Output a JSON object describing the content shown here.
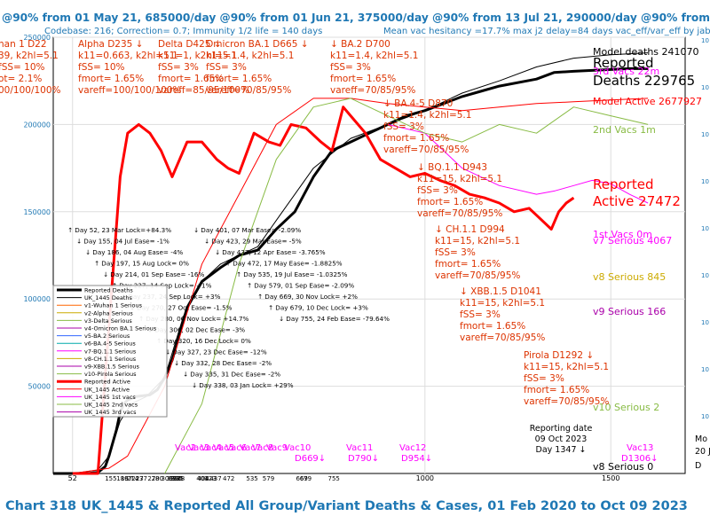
{
  "chart_data": {
    "type": "line",
    "title": "Chart 318 UK_1445 & Reported All Group/Variant Deaths & Cases, 01 Feb 2020 to Oct 09 2023",
    "header_line1": "@90% from 01 May 21, 685000/day @90% from 01 Jun 21, 375000/day @90% from 13 Jul 21, 290000/day @90% from 23 Aug 21, 150000/day @90% from",
    "header_line2": "Codebase: 216; Correction= 0.7; Immunity 1/2 life = 140 days",
    "header_line3": "Mean vac hesitancy =17.7% max j2 delay=84 days vac_eff/var_eff by jab",
    "xlabel": "",
    "ylabel": "",
    "xlim": [
      0,
      1700
    ],
    "ylim": [
      0,
      250000
    ],
    "x_ticks": [
      {
        "x": 52,
        "label": "52"
      },
      {
        "x": 1000,
        "label": "1000"
      },
      {
        "x": 1500,
        "label": "1500"
      }
    ],
    "y_ticks": [
      {
        "y": 50000,
        "label": "50000"
      },
      {
        "y": 100000,
        "label": "100000"
      },
      {
        "y": 150000,
        "label": "150000"
      },
      {
        "y": 200000,
        "label": "200000"
      },
      {
        "y": 250000,
        "label": "250000"
      }
    ],
    "x_day_labels": [
      "155",
      "186",
      "197",
      "214",
      "227",
      "237",
      "270",
      "280",
      "306",
      "320",
      "327",
      "332",
      "335",
      "338",
      "401",
      "404",
      "423",
      "437",
      "472",
      "535",
      "579",
      "669",
      "679",
      "755"
    ],
    "right_axis_labels": [
      "10",
      "10",
      "10",
      "10",
      "10",
      "10",
      "10",
      "10",
      "10"
    ],
    "series": [
      {
        "name": "Reported Deaths",
        "color": "#000000",
        "width": 3,
        "x": [
          0,
          52,
          100,
          120,
          140,
          150,
          170,
          180,
          190,
          200,
          210,
          220,
          240,
          260,
          280,
          300,
          320,
          340,
          360,
          400,
          450,
          500,
          550,
          600,
          650,
          700,
          750,
          800,
          850,
          900,
          950,
          1000,
          1050,
          1100,
          1150,
          1200,
          1300,
          1347,
          1400,
          1450,
          1500,
          1550,
          1600
        ],
        "values": [
          0,
          0,
          200,
          600,
          4000,
          10000,
          25000,
          35000,
          40000,
          42000,
          43000,
          44000,
          44500,
          45000,
          48000,
          55000,
          65000,
          80000,
          95000,
          110000,
          118000,
          125000,
          128000,
          140000,
          150000,
          170000,
          185000,
          190000,
          195000,
          200000,
          205000,
          208000,
          212000,
          216000,
          219000,
          222000,
          226000,
          229765,
          230500,
          231000,
          231500,
          232000,
          232000
        ]
      },
      {
        "name": "UK_1445 Deaths",
        "color": "#000000",
        "width": 1,
        "x": [
          0,
          52,
          120,
          150,
          180,
          210,
          250,
          300,
          350,
          400,
          450,
          500,
          550,
          600,
          700,
          800,
          900,
          1000,
          1100,
          1200,
          1300,
          1400,
          1500,
          1600
        ],
        "values": [
          0,
          0,
          2000,
          10000,
          30000,
          40000,
          44000,
          55000,
          90000,
          110000,
          120000,
          125000,
          130000,
          145000,
          175000,
          192000,
          200000,
          208000,
          218000,
          225000,
          233000,
          238000,
          240000,
          241070
        ]
      },
      {
        "name": "Reported Active",
        "color": "#ff0000",
        "width": 3,
        "x": [
          52,
          120,
          180,
          200,
          230,
          260,
          290,
          320,
          340,
          360,
          400,
          440,
          470,
          500,
          540,
          580,
          610,
          640,
          680,
          720,
          750,
          780,
          800,
          840,
          880,
          920,
          960,
          1000,
          1040,
          1080,
          1120,
          1160,
          1200,
          1240,
          1280,
          1300,
          1340,
          1360,
          1380,
          1400
        ],
        "values": [
          0,
          0,
          170000,
          195000,
          200000,
          195000,
          185000,
          170000,
          180000,
          190000,
          190000,
          180000,
          175000,
          172000,
          195000,
          190000,
          188000,
          200000,
          198000,
          190000,
          185000,
          210000,
          205000,
          195000,
          180000,
          175000,
          170000,
          172000,
          168000,
          165000,
          160000,
          158000,
          155000,
          150000,
          152000,
          148000,
          140000,
          150000,
          155000,
          158000
        ]
      },
      {
        "name": "UK_1445 Active",
        "color": "#ff0000",
        "width": 1,
        "x": [
          52,
          150,
          200,
          300,
          400,
          600,
          700,
          800,
          900,
          1000,
          1100,
          1200,
          1300,
          1400,
          1500,
          1600
        ],
        "values": [
          0,
          3000,
          10000,
          50000,
          120000,
          200000,
          215000,
          215000,
          212000,
          210000,
          208000,
          210000,
          212000,
          213000,
          214000,
          215000
        ]
      },
      {
        "name": "Model Active curve (pink)",
        "color": "#ff00ff",
        "width": 1,
        "x": [
          900,
          1000,
          1100,
          1200,
          1300,
          1350,
          1400,
          1450,
          1500,
          1550,
          1600
        ],
        "values": [
          200000,
          195000,
          175000,
          165000,
          160000,
          162000,
          165000,
          168000,
          166000,
          160000,
          155000
        ]
      },
      {
        "name": "2nd Vacs",
        "color": "#88bb44",
        "width": 1,
        "x": [
          300,
          400,
          500,
          600,
          700,
          800,
          900,
          1000,
          1100,
          1200,
          1300,
          1400,
          1500,
          1600
        ],
        "values": [
          0,
          40000,
          120000,
          180000,
          210000,
          215000,
          205000,
          195000,
          190000,
          200000,
          195000,
          210000,
          205000,
          200000
        ]
      }
    ],
    "right_labels": [
      {
        "text": "Model deaths 241070",
        "color": "#000000",
        "size": 11
      },
      {
        "text": "Reported",
        "color": "#000000",
        "size": 15
      },
      {
        "text": "3rd Vacs  22m",
        "color": "#ff00ff",
        "size": 11
      },
      {
        "text": "Deaths 229765",
        "color": "#000000",
        "size": 15
      },
      {
        "text": "Model Active 2677927",
        "color": "#ff0000",
        "size": 11
      },
      {
        "text": "2nd Vacs 1m",
        "color": "#88bb44",
        "size": 11
      },
      {
        "text": "Reported",
        "color": "#ff0000",
        "size": 15
      },
      {
        "text": "Active 27472",
        "color": "#ff0000",
        "size": 15
      },
      {
        "text": "1st Vacs 0m",
        "color": "#ff00ff",
        "size": 11
      },
      {
        "text": "v7 Serious 4067",
        "color": "#ff00ff",
        "size": 11
      },
      {
        "text": "v8 Serious 845",
        "color": "#ccaa00",
        "size": 11
      },
      {
        "text": "v9 Serious 166",
        "color": "#aa00aa",
        "size": 11
      },
      {
        "text": "v10 Serious 2",
        "color": "#88bb44",
        "size": 11
      },
      {
        "text": "v8 Serious 0",
        "color": "#000000",
        "size": 11
      }
    ],
    "variant_labels": [
      {
        "lines": [
          "han 1 D22"
        ],
        "color": "#dd3300"
      },
      {
        "lines": [
          "39, k2hl=5.1",
          "fSS= 10%",
          "ot= 2.1%",
          "00/100/100%"
        ],
        "color": "#dd3300"
      },
      {
        "lines": [
          "Alpha D235 ↓",
          "k11=0.663, k2hl=5.1",
          "fSS= 10%",
          "fmort= 1.65%",
          "vareff=100/100/100%"
        ],
        "color": "#dd3300"
      },
      {
        "lines": [
          "Delta D425 ↓",
          "k11=1, k2hl=5.1",
          "fSS= 3%",
          "fmort= 1.65%",
          "vareff=85/95/100%"
        ],
        "color": "#dd3300"
      },
      {
        "lines": [
          "Omicron BA.1 D665 ↓",
          "k11=1.4, k2hl=5.1",
          "fSS= 3%",
          "fmort= 1.65%",
          "vareff=70/85/95%"
        ],
        "color": "#dd3300"
      },
      {
        "lines": [
          "↓ BA.2 D700",
          "k11=1.4, k2hl=5.1",
          "fSS= 3%",
          "fmort= 1.65%",
          "vareff=70/85/95%"
        ],
        "color": "#dd3300"
      },
      {
        "lines": [
          "↓ BA.4-5 D870",
          "k11=1.4, k2hl=5.1",
          "fSS= 3%",
          "fmort= 1.65%",
          "vareff=70/85/95%"
        ],
        "color": "#dd3300"
      },
      {
        "lines": [
          "↓ BQ.1.1 D943",
          "k11=15, k2hl=5.1",
          "fSS= 3%",
          "fmort= 1.65%",
          "vareff=70/85/95%"
        ],
        "color": "#dd3300"
      },
      {
        "lines": [
          "↓ CH.1.1 D994",
          "k11=15, k2hl=5.1",
          "fSS= 3%",
          "fmort= 1.65%",
          "vareff=70/85/95%"
        ],
        "color": "#dd3300"
      },
      {
        "lines": [
          "↓ XBB.1.5 D1041",
          "k11=15, k2hl=5.1",
          "fSS= 3%",
          "fmort= 1.65%",
          "vareff=70/85/95%"
        ],
        "color": "#dd3300"
      },
      {
        "lines": [
          "Pirola D1292 ↓",
          "k11=15, k2hl=5.1",
          "fSS= 3%",
          "fmort= 1.65%",
          "vareff=70/85/95%"
        ],
        "color": "#dd3300"
      }
    ],
    "lockdown_annotations": [
      "↑ Day 52, 23 Mar Lock=+84.3%",
      "↓ Day 155, 04 Jul Ease= -1%",
      "↓ Day 186, 04 Aug Ease= -4%",
      "↑ Day 197, 15 Aug Lock= 0%",
      "↓ Day 214, 01 Sep Ease= -16%",
      "↑ Day 227, 14 Sep Lock= +1%",
      "↓ Day 237, 24 Sep Lock= +3%",
      "↓ Day 270, 27 Oct Ease= -1.5%",
      "↑ Day 280, 06 Nov Lock= +14.7%",
      "↓ Day 306, 02 Dec Ease= -3%",
      "↑ Day 320, 16 Dec Lock= 0%",
      "↓ Day 327, 23 Dec Ease= -12%",
      "↓ Day 332, 28 Dec Ease= -2%",
      "↓ Day 335, 31 Dec Ease= -2%",
      "↓ Day 338, 03 Jan Lock= +29%"
    ],
    "lockdown_annotations_right": [
      "↓ Day 401, 07 Mar Ease= -2.09%",
      "↓ Day 423, 29 Mar Ease= -5%",
      "↓ Day 437, 12 Apr Ease= -3.765%",
      "↑ Day 472, 17 May Ease= -1.8825%",
      "↑ Day 535, 19 Jul Ease= -1.0325%",
      "↑ Day 579, 01 Sep Ease= -2.09%",
      "↑ Day 669, 30 Nov Lock= +2%",
      "↑ Day 679, 10 Dec Lock= +3%",
      "↓ Day 755, 24 Feb Ease= -79.64%"
    ],
    "legend": [
      {
        "label": "Reported Deaths",
        "color": "#000000",
        "width": 3
      },
      {
        "label": "UK_1445 Deaths",
        "color": "#000000",
        "width": 1
      },
      {
        "label": "v1-Wuhan 1 Serious",
        "color": "#ff6600",
        "width": 1
      },
      {
        "label": "v2-Alpha Serious",
        "color": "#ccaa00",
        "width": 1
      },
      {
        "label": "v3-Delta Serious",
        "color": "#88bb44",
        "width": 1
      },
      {
        "label": "v4-Omicron BA.1 Serious",
        "color": "#aa00aa",
        "width": 1
      },
      {
        "label": "v5-BA.2 Serious",
        "color": "#3366ff",
        "width": 1
      },
      {
        "label": "v6-BA.4-5 Serious",
        "color": "#00aaaa",
        "width": 1
      },
      {
        "label": "v7-BQ.1.1 Serious",
        "color": "#ff00ff",
        "width": 1
      },
      {
        "label": "v8-CH.1.1 Serious",
        "color": "#ccaa00",
        "width": 1
      },
      {
        "label": "v9-XBB.1.5 Serious",
        "color": "#aa00aa",
        "width": 1
      },
      {
        "label": "v10-Pirola Serious",
        "color": "#88bb44",
        "width": 1
      },
      {
        "label": "Reported Active",
        "color": "#ff0000",
        "width": 3
      },
      {
        "label": "UK_1445 Active",
        "color": "#ff0000",
        "width": 1
      },
      {
        "label": "UK_1445 1st vacs",
        "color": "#ff00ff",
        "width": 1
      },
      {
        "label": "UK_1445 2nd vacs",
        "color": "#88bb44",
        "width": 1
      },
      {
        "label": "UK_1445 3rd vacs",
        "color": "#aa00aa",
        "width": 1
      }
    ],
    "vac_labels": [
      "Vac2 D326",
      "Vac3 D365",
      "Vac4 D403",
      "Vac5 D433",
      "Vac6 D496",
      "Vac7 D524",
      "Vac8 D530",
      "Vac9 D565",
      "Vac10 D669",
      "Vac11 D790",
      "Vac12 D954",
      "Vac13 D1306"
    ],
    "bottom_vac_label_texts": [
      "Vac2",
      "Vac3",
      "Vac4",
      "Vac5",
      "Vac6",
      "Vac7",
      "Vac8",
      "Vac9",
      "Vac10",
      "D669↓",
      "Vac11",
      "D790↓",
      "Vac12",
      "D954↓",
      "Vac13",
      "D1306↓"
    ],
    "reporting_date": [
      "Reporting date",
      "09 Oct 2023",
      "Day 1347 ↓"
    ],
    "right_edge_texts": [
      "Mo",
      "20 J",
      "D"
    ]
  }
}
